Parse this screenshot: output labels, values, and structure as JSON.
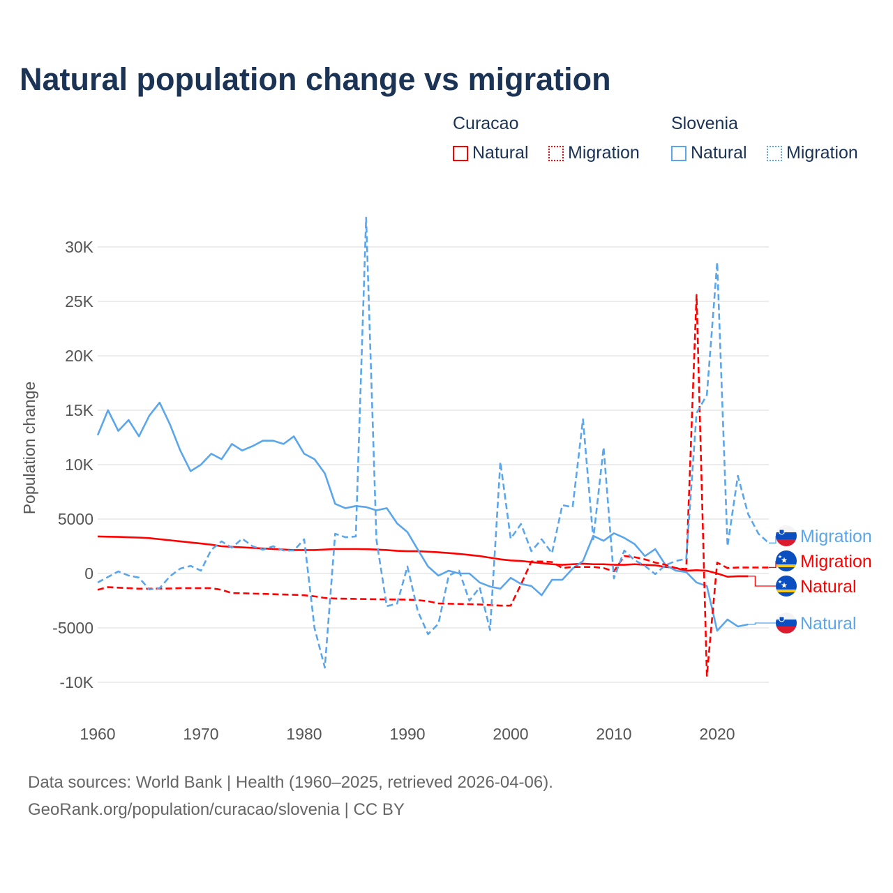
{
  "title": "Natural population change vs migration",
  "legend": {
    "groups": [
      {
        "country": "Curacao",
        "items": [
          {
            "label": "Natural",
            "style": "solid",
            "color": "#ff0000"
          },
          {
            "label": "Migration",
            "style": "dotted",
            "color": "#ff0000"
          }
        ]
      },
      {
        "country": "Slovenia",
        "items": [
          {
            "label": "Natural",
            "style": "solid",
            "color": "#5ba6ea"
          },
          {
            "label": "Migration",
            "style": "dotted",
            "color": "#5ba6ea"
          }
        ]
      }
    ]
  },
  "footer": {
    "line1": "Data sources: World Bank | Health (1960–2025, retrieved 2026-04-06).",
    "line2": "GeoRank.org/population/curacao/slovenia | CC BY"
  },
  "chart_data": {
    "type": "line",
    "title": "Natural population change vs migration",
    "xlabel": "",
    "ylabel": "Population change",
    "xlim": [
      1960,
      2025
    ],
    "ylim": [
      -12000,
      33000
    ],
    "grid": true,
    "legend_placement": "top-right",
    "x_ticks": [
      1960,
      1970,
      1980,
      1990,
      2000,
      2010,
      2020
    ],
    "x_tick_labels": [
      "1960",
      "1970",
      "1980",
      "1990",
      "2000",
      "2010",
      "2020"
    ],
    "y_ticks": [
      30000,
      25000,
      20000,
      15000,
      10000,
      5000,
      0,
      -5000,
      -10000
    ],
    "y_tick_labels": [
      "30K",
      "25K",
      "20K",
      "15K",
      "10K",
      "5000",
      "0",
      "-5000",
      "-10K"
    ],
    "x_start": 1960,
    "series": [
      {
        "name": "Slovenia Natural",
        "end_label": "Natural",
        "country": "Slovenia",
        "color": "#5ba6ea",
        "dashed": false,
        "values": [
          12700,
          15000,
          13100,
          14100,
          12600,
          14500,
          15700,
          13700,
          11300,
          9400,
          10000,
          11000,
          10500,
          11900,
          11300,
          11700,
          12200,
          12200,
          11900,
          12600,
          11000,
          10500,
          9200,
          6400,
          6000,
          6200,
          6100,
          5800,
          6000,
          4600,
          3800,
          2200,
          640,
          -200,
          260,
          0,
          0,
          -830,
          -1200,
          -1400,
          -400,
          -960,
          -1150,
          -2000,
          -580,
          -580,
          450,
          1150,
          3460,
          3000,
          3700,
          3270,
          2700,
          1600,
          2240,
          770,
          260,
          130,
          -830,
          -1150,
          -5260,
          -4230,
          -4870,
          -4680,
          null,
          null
        ]
      },
      {
        "name": "Slovenia Migration",
        "end_label": "Migration",
        "country": "Slovenia",
        "color": "#5ba6ea",
        "dashed": true,
        "values": [
          -830,
          -320,
          190,
          -190,
          -380,
          -1470,
          -1350,
          -260,
          450,
          700,
          260,
          2180,
          2950,
          2370,
          3200,
          2500,
          2180,
          2500,
          2110,
          2110,
          3140,
          -5000,
          -8650,
          3650,
          3330,
          3400,
          32700,
          3080,
          -3010,
          -2760,
          640,
          -3460,
          -5580,
          -4620,
          -190,
          260,
          -2500,
          -1280,
          -5200,
          10260,
          3200,
          4550,
          2050,
          3140,
          1860,
          6280,
          6100,
          14170,
          3140,
          11600,
          -450,
          2110,
          1220,
          700,
          -60,
          770,
          1150,
          1350,
          14740,
          16400,
          28600,
          2500,
          8970,
          5450,
          3650,
          2800
        ]
      },
      {
        "name": "Curacao Natural",
        "end_label": "Natural",
        "country": "Curacao",
        "color": "#ff0000",
        "dashed": false,
        "values": [
          3400,
          3380,
          3360,
          3330,
          3300,
          3250,
          3150,
          3050,
          2950,
          2850,
          2750,
          2650,
          2500,
          2450,
          2400,
          2350,
          2300,
          2250,
          2200,
          2150,
          2150,
          2150,
          2200,
          2250,
          2250,
          2250,
          2230,
          2200,
          2150,
          2080,
          2050,
          2050,
          2000,
          1950,
          1880,
          1800,
          1700,
          1600,
          1450,
          1300,
          1200,
          1150,
          1050,
          950,
          850,
          800,
          850,
          900,
          850,
          850,
          800,
          800,
          850,
          800,
          750,
          600,
          500,
          250,
          300,
          250,
          0,
          -300,
          -250,
          -250,
          null,
          null
        ]
      },
      {
        "name": "Curacao Migration",
        "end_label": "Migration",
        "country": "Curacao",
        "color": "#ff0000",
        "dashed": true,
        "values": [
          -1500,
          -1250,
          -1300,
          -1350,
          -1400,
          -1400,
          -1380,
          -1380,
          -1350,
          -1350,
          -1350,
          -1350,
          -1500,
          -1800,
          -1820,
          -1850,
          -1870,
          -1900,
          -1930,
          -1960,
          -2000,
          -2100,
          -2250,
          -2300,
          -2320,
          -2340,
          -2350,
          -2370,
          -2380,
          -2390,
          -2400,
          -2450,
          -2550,
          -2750,
          -2780,
          -2800,
          -2820,
          -2850,
          -2900,
          -2950,
          -2950,
          -1000,
          1100,
          1100,
          1050,
          500,
          600,
          600,
          600,
          500,
          200,
          1600,
          1500,
          1300,
          1000,
          800,
          500,
          400,
          25600,
          -9400,
          1000,
          500,
          550,
          550,
          550,
          550
        ]
      }
    ]
  }
}
